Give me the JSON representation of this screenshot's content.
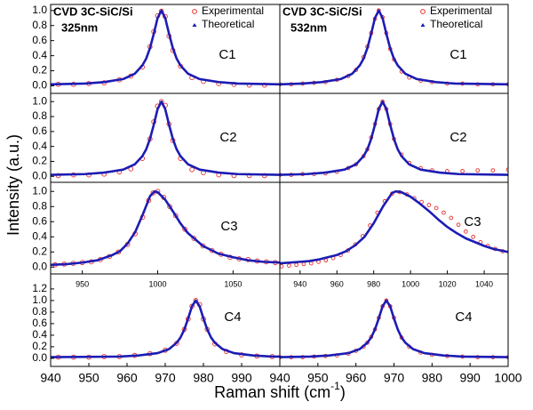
{
  "y_label": "Intensity (a.u.)",
  "x_label": "Raman shift (cm",
  "x_label_sup": "-1",
  "x_label_end": ")",
  "chart_data": [
    {
      "type": "line",
      "title": "CVD 3C-SiC/Si",
      "subtitle": "325nm",
      "annotation": "C1",
      "legend": "upper right",
      "xlim": [
        940,
        1000
      ],
      "ylim": [
        -0.1,
        1.08
      ],
      "yticks": [
        {
          "value": 0,
          "label": "0.0"
        },
        0.2,
        0.4,
        0.6,
        0.8,
        {
          "value": 1,
          "label": "1.0"
        }
      ],
      "series": [
        {
          "name": "Experimental",
          "color": "#e8302a",
          "marker": "circle",
          "x": [
            942,
            946,
            950,
            954,
            958,
            961,
            964,
            966,
            967,
            968,
            969,
            970,
            971,
            972,
            974,
            977,
            980,
            984,
            988,
            992,
            996
          ],
          "values": [
            0.02,
            0.02,
            0.03,
            0.04,
            0.08,
            0.13,
            0.25,
            0.52,
            0.72,
            0.93,
            0.99,
            0.92,
            0.66,
            0.47,
            0.26,
            0.11,
            0.06,
            0.03,
            0.02,
            0.01,
            0.01
          ]
        },
        {
          "name": "Theoretical",
          "color": "#1c1cb4",
          "marker": "triangle",
          "x": [
            940,
            949,
            954,
            959,
            962,
            964,
            965,
            966,
            967,
            968,
            969,
            970,
            971,
            972,
            973,
            974,
            976,
            979,
            984,
            989,
            1000
          ],
          "values": [
            0.02,
            0.03,
            0.05,
            0.09,
            0.16,
            0.27,
            0.36,
            0.5,
            0.69,
            0.9,
            1.0,
            0.9,
            0.69,
            0.5,
            0.36,
            0.27,
            0.16,
            0.09,
            0.05,
            0.03,
            0.02
          ]
        }
      ]
    },
    {
      "type": "line",
      "title": "CVD 3C-SiC/Si",
      "subtitle": "532nm",
      "annotation": "C1",
      "legend": "upper right",
      "xlim": [
        940,
        1000
      ],
      "ylim": [
        -0.1,
        1.08
      ],
      "series": [
        {
          "name": "Experimental",
          "color": "#e8302a",
          "marker": "circle",
          "x": [
            940,
            943,
            946,
            949,
            952,
            955,
            958,
            960,
            962,
            963,
            964,
            965,
            966,
            967,
            968,
            969,
            970,
            972,
            974,
            977,
            980,
            984,
            988,
            992,
            996,
            1000
          ],
          "values": [
            0.02,
            0.02,
            0.03,
            0.04,
            0.05,
            0.08,
            0.13,
            0.21,
            0.38,
            0.52,
            0.7,
            0.89,
            1.0,
            0.91,
            0.7,
            0.49,
            0.35,
            0.19,
            0.11,
            0.07,
            0.05,
            0.03,
            0.03,
            0.02,
            0.02,
            0.02
          ]
        },
        {
          "name": "Theoretical",
          "color": "#1c1cb4",
          "marker": "triangle",
          "x": [
            940,
            946,
            951,
            956,
            959,
            961,
            962,
            963,
            964,
            965,
            966,
            967,
            968,
            969,
            970,
            971,
            973,
            976,
            981,
            986,
            1000
          ],
          "values": [
            0.02,
            0.03,
            0.05,
            0.09,
            0.16,
            0.27,
            0.36,
            0.5,
            0.69,
            0.9,
            1.0,
            0.9,
            0.69,
            0.5,
            0.36,
            0.27,
            0.16,
            0.09,
            0.05,
            0.03,
            0.02
          ]
        }
      ]
    },
    {
      "type": "line",
      "annotation": "C2",
      "xlim": [
        940,
        1000
      ],
      "ylim": [
        -0.08,
        1.11
      ],
      "yticks": [
        {
          "value": 0,
          "label": "0.0"
        },
        0.2,
        0.4,
        0.6,
        0.8,
        {
          "value": 1,
          "label": "1.0"
        }
      ],
      "series": [
        {
          "color": "#e8302a",
          "marker": "circle",
          "x": [
            942,
            946,
            950,
            954,
            958,
            961,
            964,
            966,
            967,
            968,
            969,
            970,
            971,
            972,
            974,
            977,
            980,
            984,
            988,
            992,
            996
          ],
          "values": [
            0.01,
            0.02,
            0.02,
            0.03,
            0.06,
            0.1,
            0.24,
            0.5,
            0.73,
            0.94,
            1.0,
            0.95,
            0.7,
            0.48,
            0.24,
            0.09,
            0.05,
            0.02,
            0.01,
            0.01,
            0.01
          ]
        },
        {
          "color": "#1c1cb4",
          "marker": "triangle",
          "x": [
            940,
            949,
            954,
            959,
            962,
            964,
            965,
            966,
            967,
            968,
            969,
            970,
            971,
            972,
            973,
            974,
            976,
            979,
            984,
            989,
            1000
          ],
          "values": [
            0.02,
            0.03,
            0.05,
            0.09,
            0.16,
            0.27,
            0.36,
            0.5,
            0.69,
            0.9,
            1.0,
            0.9,
            0.69,
            0.5,
            0.36,
            0.27,
            0.16,
            0.09,
            0.05,
            0.03,
            0.02
          ]
        }
      ]
    },
    {
      "type": "line",
      "annotation": "C2",
      "xlim": [
        940,
        1000
      ],
      "ylim": [
        -0.08,
        1.11
      ],
      "series": [
        {
          "color": "#e8302a",
          "marker": "circle",
          "x": [
            940,
            943,
            946,
            949,
            952,
            955,
            958,
            960,
            962,
            963,
            964,
            965,
            966,
            967,
            968,
            969,
            970,
            972,
            974,
            977,
            980,
            984,
            988,
            992,
            996,
            1000
          ],
          "values": [
            0.02,
            0.02,
            0.03,
            0.03,
            0.04,
            0.06,
            0.11,
            0.16,
            0.27,
            0.36,
            0.52,
            0.7,
            0.9,
            1.0,
            0.9,
            0.7,
            0.5,
            0.29,
            0.18,
            0.11,
            0.08,
            0.07,
            0.07,
            0.08,
            0.08,
            0.09
          ]
        },
        {
          "color": "#1c1cb4",
          "marker": "triangle",
          "x": [
            940,
            947,
            952,
            957,
            960,
            962,
            963,
            964,
            965,
            966,
            967,
            968,
            969,
            970,
            971,
            972,
            974,
            977,
            982,
            987,
            1000
          ],
          "values": [
            0.02,
            0.03,
            0.05,
            0.09,
            0.16,
            0.27,
            0.36,
            0.5,
            0.69,
            0.9,
            1.0,
            0.9,
            0.69,
            0.5,
            0.36,
            0.27,
            0.16,
            0.09,
            0.05,
            0.03,
            0.02
          ]
        }
      ]
    },
    {
      "type": "line",
      "annotation": "C3",
      "xlim": [
        929,
        1081
      ],
      "ylim": [
        -0.09,
        1.12
      ],
      "xticks": [
        950,
        1000,
        1050
      ],
      "yticks": [
        {
          "value": 0,
          "label": "0.0"
        },
        0.2,
        0.4,
        0.6,
        0.8,
        {
          "value": 1,
          "label": "1.0"
        }
      ],
      "series": [
        {
          "color": "#e8302a",
          "marker": "circle",
          "x": [
            932,
            938,
            944,
            950,
            956,
            962,
            968,
            974,
            980,
            985,
            990,
            994,
            997,
            1000,
            1004,
            1008,
            1012,
            1018,
            1024,
            1030,
            1036,
            1042,
            1048,
            1054,
            1060,
            1066,
            1072,
            1078
          ],
          "values": [
            0.03,
            0.04,
            0.05,
            0.06,
            0.07,
            0.1,
            0.14,
            0.2,
            0.3,
            0.44,
            0.66,
            0.88,
            0.98,
            1.0,
            0.92,
            0.8,
            0.68,
            0.5,
            0.38,
            0.28,
            0.22,
            0.17,
            0.13,
            0.11,
            0.1,
            0.08,
            0.07,
            0.06
          ]
        },
        {
          "color": "#1c1cb4",
          "marker": "triangle",
          "x": [
            929,
            940,
            950,
            960,
            970,
            975,
            980,
            985,
            990,
            995,
            998,
            1000,
            1005,
            1010,
            1015,
            1020,
            1030,
            1040,
            1050,
            1060,
            1070,
            1081
          ],
          "values": [
            0.03,
            0.04,
            0.06,
            0.09,
            0.16,
            0.21,
            0.31,
            0.46,
            0.69,
            0.94,
            1.0,
            0.99,
            0.89,
            0.74,
            0.58,
            0.45,
            0.28,
            0.18,
            0.13,
            0.09,
            0.07,
            0.06
          ]
        }
      ]
    },
    {
      "type": "line",
      "annotation": "C3",
      "xlim": [
        929,
        1053
      ],
      "ylim": [
        -0.09,
        1.12
      ],
      "xticks": [
        940,
        960,
        980,
        1000,
        1020,
        1040
      ],
      "series": [
        {
          "color": "#e8302a",
          "marker": "circle",
          "x": [
            930,
            934,
            938,
            942,
            946,
            950,
            954,
            958,
            962,
            966,
            970,
            974,
            978,
            982,
            986,
            990,
            994,
            998,
            1002,
            1006,
            1010,
            1014,
            1018,
            1022,
            1026,
            1030,
            1034,
            1038,
            1042,
            1046,
            1050
          ],
          "values": [
            0.01,
            0.02,
            0.03,
            0.04,
            0.05,
            0.07,
            0.09,
            0.12,
            0.16,
            0.22,
            0.3,
            0.41,
            0.55,
            0.72,
            0.87,
            0.97,
            0.99,
            0.96,
            0.91,
            0.86,
            0.82,
            0.78,
            0.72,
            0.65,
            0.56,
            0.47,
            0.4,
            0.33,
            0.28,
            0.24,
            0.21
          ]
        },
        {
          "color": "#1c1cb4",
          "marker": "triangle",
          "x": [
            929,
            935,
            940,
            945,
            950,
            955,
            960,
            965,
            970,
            975,
            980,
            985,
            990,
            992,
            995,
            1000,
            1005,
            1010,
            1015,
            1020,
            1025,
            1030,
            1035,
            1040,
            1045,
            1053
          ],
          "values": [
            0.05,
            0.06,
            0.07,
            0.08,
            0.1,
            0.13,
            0.16,
            0.21,
            0.29,
            0.4,
            0.58,
            0.8,
            0.98,
            1.0,
            0.99,
            0.93,
            0.84,
            0.74,
            0.63,
            0.53,
            0.45,
            0.38,
            0.33,
            0.28,
            0.24,
            0.2
          ]
        }
      ]
    },
    {
      "type": "line",
      "annotation": "C4",
      "xlim": [
        940,
        1000
      ],
      "ylim": [
        -0.14,
        1.46
      ],
      "xticks": [
        940,
        950,
        960,
        970,
        980,
        990
      ],
      "yticks": [
        {
          "value": 0,
          "label": "0.0"
        },
        0.2,
        0.4,
        0.6,
        0.8,
        {
          "value": 1,
          "label": "1.0"
        },
        1.2
      ],
      "series": [
        {
          "color": "#e8302a",
          "marker": "circle",
          "x": [
            942,
            946,
            950,
            954,
            958,
            962,
            966,
            970,
            973,
            975,
            976,
            977,
            978,
            979,
            980,
            981,
            983,
            986,
            990,
            994,
            998
          ],
          "values": [
            0.02,
            0.02,
            0.02,
            0.03,
            0.03,
            0.05,
            0.08,
            0.14,
            0.26,
            0.5,
            0.68,
            0.9,
            1.0,
            0.93,
            0.68,
            0.5,
            0.25,
            0.12,
            0.06,
            0.04,
            0.03
          ]
        },
        {
          "color": "#1c1cb4",
          "marker": "triangle",
          "x": [
            940,
            958,
            963,
            968,
            971,
            973,
            974,
            975,
            976,
            977,
            978,
            979,
            980,
            981,
            982,
            983,
            985,
            988,
            993,
            998,
            1000
          ],
          "values": [
            0.02,
            0.03,
            0.05,
            0.09,
            0.16,
            0.27,
            0.36,
            0.5,
            0.69,
            0.9,
            1.0,
            0.9,
            0.69,
            0.5,
            0.36,
            0.27,
            0.16,
            0.09,
            0.05,
            0.03,
            0.03
          ]
        }
      ]
    },
    {
      "type": "line",
      "annotation": "C4",
      "xlim": [
        940,
        1000
      ],
      "ylim": [
        -0.14,
        1.46
      ],
      "xticks": [
        940,
        950,
        960,
        970,
        980,
        990,
        1000
      ],
      "series": [
        {
          "color": "#e8302a",
          "marker": "circle",
          "x": [
            940,
            943,
            946,
            949,
            952,
            955,
            958,
            960,
            962,
            963,
            964,
            965,
            966,
            967,
            968,
            969,
            970,
            972,
            974,
            977,
            980,
            984,
            988,
            992,
            996,
            1000
          ],
          "values": [
            0.02,
            0.02,
            0.02,
            0.03,
            0.04,
            0.05,
            0.08,
            0.13,
            0.2,
            0.27,
            0.37,
            0.5,
            0.7,
            0.9,
            1.0,
            0.9,
            0.7,
            0.36,
            0.2,
            0.1,
            0.06,
            0.04,
            0.03,
            0.02,
            0.02,
            0.02
          ]
        },
        {
          "color": "#1c1cb4",
          "marker": "triangle",
          "x": [
            940,
            948,
            953,
            958,
            961,
            963,
            964,
            965,
            966,
            967,
            968,
            969,
            970,
            971,
            972,
            973,
            975,
            978,
            983,
            988,
            1000
          ],
          "values": [
            0.02,
            0.03,
            0.05,
            0.09,
            0.16,
            0.27,
            0.36,
            0.5,
            0.69,
            0.9,
            1.0,
            0.9,
            0.69,
            0.5,
            0.36,
            0.27,
            0.16,
            0.09,
            0.05,
            0.03,
            0.02
          ]
        }
      ]
    }
  ]
}
